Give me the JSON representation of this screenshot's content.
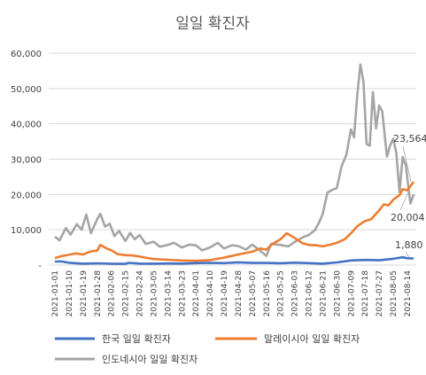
{
  "chart_data": {
    "type": "line",
    "title": "일일 확진자",
    "xlabel": "",
    "ylabel": "",
    "ylim": [
      0,
      60000
    ],
    "yticks": [
      0,
      10000,
      20000,
      30000,
      40000,
      50000,
      60000
    ],
    "yticks_labels": [
      "-",
      "10,000",
      "20,000",
      "30,000",
      "40,000",
      "50,000",
      "60,000"
    ],
    "x_start": "2021-01-01",
    "x_end": "2021-08-18",
    "x_ticks": [
      "2021-01-01",
      "2021-01-10",
      "2021-01-19",
      "2021-01-28",
      "2021-02-06",
      "2021-02-15",
      "2021-02-24",
      "2021-03-05",
      "2021-03-14",
      "2021-03-23",
      "2021-04-01",
      "2021-04-10",
      "2021-04-19",
      "2021-04-28",
      "2021-05-07",
      "2021-05-16",
      "2021-05-25",
      "2021-06-03",
      "2021-06-12",
      "2021-06-21",
      "2021-06-30",
      "2021-07-09",
      "2021-07-18",
      "2021-07-27",
      "2021-08-05",
      "2021-08-14"
    ],
    "grid": {
      "horizontal": true,
      "vertical": false
    },
    "legend_position": "bottom",
    "series": [
      {
        "name": "한국 일일 확진자",
        "color": "#4472C4",
        "points": [
          {
            "date": "2021-01-01",
            "value": 1000
          },
          {
            "date": "2021-01-05",
            "value": 1020
          },
          {
            "date": "2021-01-10",
            "value": 660
          },
          {
            "date": "2021-01-19",
            "value": 390
          },
          {
            "date": "2021-01-28",
            "value": 500
          },
          {
            "date": "2021-02-06",
            "value": 370
          },
          {
            "date": "2021-02-15",
            "value": 340
          },
          {
            "date": "2021-02-17",
            "value": 620
          },
          {
            "date": "2021-02-24",
            "value": 420
          },
          {
            "date": "2021-03-05",
            "value": 400
          },
          {
            "date": "2021-03-14",
            "value": 460
          },
          {
            "date": "2021-03-23",
            "value": 420
          },
          {
            "date": "2021-04-01",
            "value": 550
          },
          {
            "date": "2021-04-10",
            "value": 620
          },
          {
            "date": "2021-04-19",
            "value": 550
          },
          {
            "date": "2021-04-28",
            "value": 770
          },
          {
            "date": "2021-05-07",
            "value": 590
          },
          {
            "date": "2021-05-16",
            "value": 610
          },
          {
            "date": "2021-05-25",
            "value": 520
          },
          {
            "date": "2021-06-03",
            "value": 680
          },
          {
            "date": "2021-06-12",
            "value": 560
          },
          {
            "date": "2021-06-21",
            "value": 400
          },
          {
            "date": "2021-06-30",
            "value": 760
          },
          {
            "date": "2021-07-09",
            "value": 1300
          },
          {
            "date": "2021-07-18",
            "value": 1450
          },
          {
            "date": "2021-07-27",
            "value": 1360
          },
          {
            "date": "2021-08-05",
            "value": 1770
          },
          {
            "date": "2021-08-11",
            "value": 2220
          },
          {
            "date": "2021-08-14",
            "value": 1930
          },
          {
            "date": "2021-08-18",
            "value": 1880
          }
        ]
      },
      {
        "name": "말레이시아 일일 확진자",
        "color": "#ED7D31",
        "points": [
          {
            "date": "2021-01-01",
            "value": 2000
          },
          {
            "date": "2021-01-05",
            "value": 2500
          },
          {
            "date": "2021-01-10",
            "value": 2900
          },
          {
            "date": "2021-01-14",
            "value": 3300
          },
          {
            "date": "2021-01-19",
            "value": 3000
          },
          {
            "date": "2021-01-24",
            "value": 3900
          },
          {
            "date": "2021-01-28",
            "value": 4100
          },
          {
            "date": "2021-01-30",
            "value": 5700
          },
          {
            "date": "2021-02-03",
            "value": 4700
          },
          {
            "date": "2021-02-06",
            "value": 4200
          },
          {
            "date": "2021-02-10",
            "value": 3100
          },
          {
            "date": "2021-02-15",
            "value": 2800
          },
          {
            "date": "2021-02-20",
            "value": 2700
          },
          {
            "date": "2021-02-24",
            "value": 2400
          },
          {
            "date": "2021-03-01",
            "value": 2000
          },
          {
            "date": "2021-03-05",
            "value": 1700
          },
          {
            "date": "2021-03-14",
            "value": 1500
          },
          {
            "date": "2021-03-23",
            "value": 1300
          },
          {
            "date": "2021-04-01",
            "value": 1200
          },
          {
            "date": "2021-04-10",
            "value": 1400
          },
          {
            "date": "2021-04-19",
            "value": 2100
          },
          {
            "date": "2021-04-28",
            "value": 3000
          },
          {
            "date": "2021-05-07",
            "value": 3800
          },
          {
            "date": "2021-05-12",
            "value": 4700
          },
          {
            "date": "2021-05-16",
            "value": 4400
          },
          {
            "date": "2021-05-20",
            "value": 6000
          },
          {
            "date": "2021-05-25",
            "value": 7300
          },
          {
            "date": "2021-05-29",
            "value": 9000
          },
          {
            "date": "2021-06-03",
            "value": 7700
          },
          {
            "date": "2021-06-08",
            "value": 6200
          },
          {
            "date": "2021-06-12",
            "value": 5700
          },
          {
            "date": "2021-06-17",
            "value": 5600
          },
          {
            "date": "2021-06-21",
            "value": 5300
          },
          {
            "date": "2021-06-26",
            "value": 5800
          },
          {
            "date": "2021-06-30",
            "value": 6300
          },
          {
            "date": "2021-07-05",
            "value": 7300
          },
          {
            "date": "2021-07-09",
            "value": 9000
          },
          {
            "date": "2021-07-13",
            "value": 11000
          },
          {
            "date": "2021-07-18",
            "value": 12500
          },
          {
            "date": "2021-07-22",
            "value": 13000
          },
          {
            "date": "2021-07-27",
            "value": 15500
          },
          {
            "date": "2021-07-30",
            "value": 17200
          },
          {
            "date": "2021-08-02",
            "value": 16900
          },
          {
            "date": "2021-08-05",
            "value": 18500
          },
          {
            "date": "2021-08-09",
            "value": 19800
          },
          {
            "date": "2021-08-11",
            "value": 21500
          },
          {
            "date": "2021-08-14",
            "value": 21200
          },
          {
            "date": "2021-08-16",
            "value": 22400
          },
          {
            "date": "2021-08-18",
            "value": 23564
          }
        ]
      },
      {
        "name": "인도네시아 일일 확진자",
        "color": "#A5A5A5",
        "points": [
          {
            "date": "2021-01-01",
            "value": 8000
          },
          {
            "date": "2021-01-04",
            "value": 7000
          },
          {
            "date": "2021-01-08",
            "value": 10500
          },
          {
            "date": "2021-01-11",
            "value": 8600
          },
          {
            "date": "2021-01-15",
            "value": 11600
          },
          {
            "date": "2021-01-18",
            "value": 10000
          },
          {
            "date": "2021-01-21",
            "value": 14300
          },
          {
            "date": "2021-01-24",
            "value": 9000
          },
          {
            "date": "2021-01-28",
            "value": 13000
          },
          {
            "date": "2021-01-30",
            "value": 14500
          },
          {
            "date": "2021-02-02",
            "value": 10900
          },
          {
            "date": "2021-02-05",
            "value": 11700
          },
          {
            "date": "2021-02-08",
            "value": 8200
          },
          {
            "date": "2021-02-11",
            "value": 9700
          },
          {
            "date": "2021-02-15",
            "value": 6800
          },
          {
            "date": "2021-02-18",
            "value": 9100
          },
          {
            "date": "2021-02-21",
            "value": 7300
          },
          {
            "date": "2021-02-24",
            "value": 8500
          },
          {
            "date": "2021-02-28",
            "value": 6000
          },
          {
            "date": "2021-03-05",
            "value": 6600
          },
          {
            "date": "2021-03-09",
            "value": 5200
          },
          {
            "date": "2021-03-14",
            "value": 5700
          },
          {
            "date": "2021-03-18",
            "value": 6300
          },
          {
            "date": "2021-03-23",
            "value": 5000
          },
          {
            "date": "2021-03-28",
            "value": 5800
          },
          {
            "date": "2021-04-01",
            "value": 5600
          },
          {
            "date": "2021-04-05",
            "value": 4200
          },
          {
            "date": "2021-04-10",
            "value": 5000
          },
          {
            "date": "2021-04-15",
            "value": 6300
          },
          {
            "date": "2021-04-19",
            "value": 4700
          },
          {
            "date": "2021-04-24",
            "value": 5600
          },
          {
            "date": "2021-04-28",
            "value": 5400
          },
          {
            "date": "2021-05-03",
            "value": 4400
          },
          {
            "date": "2021-05-07",
            "value": 5800
          },
          {
            "date": "2021-05-12",
            "value": 4100
          },
          {
            "date": "2021-05-16",
            "value": 2600
          },
          {
            "date": "2021-05-19",
            "value": 6000
          },
          {
            "date": "2021-05-25",
            "value": 5700
          },
          {
            "date": "2021-05-30",
            "value": 5300
          },
          {
            "date": "2021-06-03",
            "value": 6500
          },
          {
            "date": "2021-06-08",
            "value": 7800
          },
          {
            "date": "2021-06-12",
            "value": 8500
          },
          {
            "date": "2021-06-16",
            "value": 9900
          },
          {
            "date": "2021-06-19",
            "value": 12400
          },
          {
            "date": "2021-06-21",
            "value": 14500
          },
          {
            "date": "2021-06-24",
            "value": 20500
          },
          {
            "date": "2021-06-27",
            "value": 21300
          },
          {
            "date": "2021-06-30",
            "value": 21800
          },
          {
            "date": "2021-07-03",
            "value": 27900
          },
          {
            "date": "2021-07-06",
            "value": 31200
          },
          {
            "date": "2021-07-09",
            "value": 38400
          },
          {
            "date": "2021-07-11",
            "value": 36200
          },
          {
            "date": "2021-07-13",
            "value": 47900
          },
          {
            "date": "2021-07-15",
            "value": 56800
          },
          {
            "date": "2021-07-17",
            "value": 51900
          },
          {
            "date": "2021-07-19",
            "value": 34300
          },
          {
            "date": "2021-07-21",
            "value": 33800
          },
          {
            "date": "2021-07-23",
            "value": 49000
          },
          {
            "date": "2021-07-25",
            "value": 38700
          },
          {
            "date": "2021-07-27",
            "value": 45200
          },
          {
            "date": "2021-07-29",
            "value": 43500
          },
          {
            "date": "2021-08-01",
            "value": 30700
          },
          {
            "date": "2021-08-03",
            "value": 33900
          },
          {
            "date": "2021-08-05",
            "value": 35800
          },
          {
            "date": "2021-08-07",
            "value": 31700
          },
          {
            "date": "2021-08-09",
            "value": 20700
          },
          {
            "date": "2021-08-11",
            "value": 30600
          },
          {
            "date": "2021-08-13",
            "value": 28300
          },
          {
            "date": "2021-08-15",
            "value": 20800
          },
          {
            "date": "2021-08-16",
            "value": 17400
          },
          {
            "date": "2021-08-18",
            "value": 20004
          }
        ]
      }
    ],
    "end_labels": [
      {
        "series": "말레이시아 일일 확진자",
        "text": "23,564"
      },
      {
        "series": "인도네시아 일일 확진자",
        "text": "20,004"
      },
      {
        "series": "한국 일일 확진자",
        "text": "1,880"
      }
    ]
  }
}
